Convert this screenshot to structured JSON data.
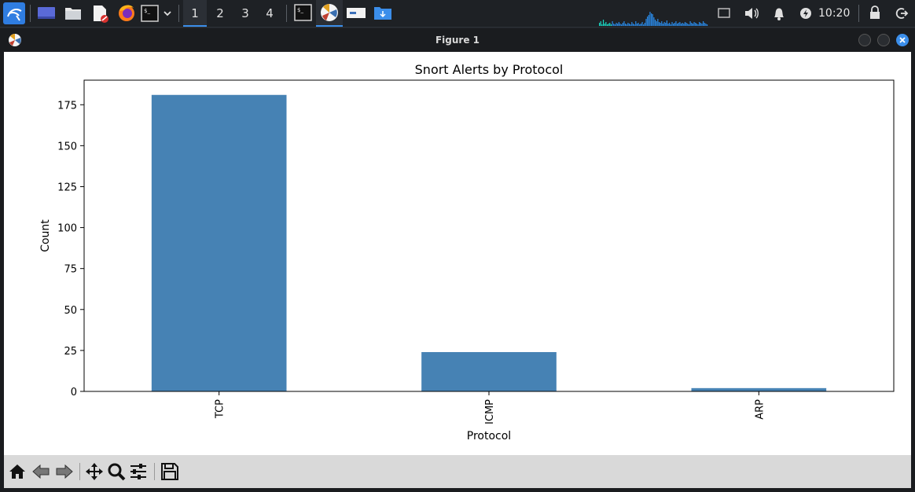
{
  "taskbar": {
    "workspaces": [
      "1",
      "2",
      "3",
      "4"
    ],
    "active_workspace": "1",
    "clock": "10:20"
  },
  "window": {
    "title": "Figure 1"
  },
  "chart_data": {
    "type": "bar",
    "title": "Snort Alerts by Protocol",
    "xlabel": "Protocol",
    "ylabel": "Count",
    "categories": [
      "TCP",
      "ICMP",
      "ARP"
    ],
    "values": [
      181,
      24,
      2
    ],
    "ylim": [
      0,
      190
    ],
    "yticks": [
      0,
      25,
      50,
      75,
      100,
      125,
      150,
      175
    ],
    "bar_color": "#4682b4",
    "grid": false
  },
  "colors": {
    "accent": "#3b8eea",
    "close_button": "#3b8eea",
    "taskbar_bg": "#1e2125"
  }
}
